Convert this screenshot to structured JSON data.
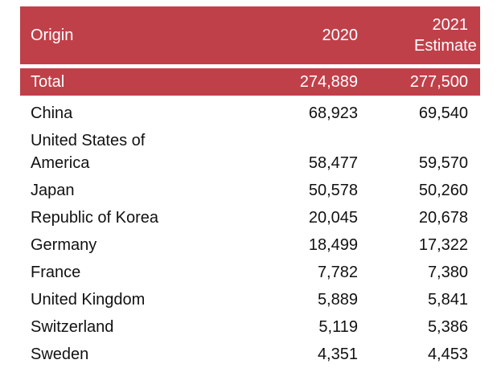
{
  "table": {
    "header": [
      "Origin",
      "2020",
      "2021 Estimate"
    ],
    "total": [
      "Total",
      "274,889",
      "277,500"
    ],
    "rows": [
      [
        "China",
        "68,923",
        "69,540"
      ],
      [
        "United States of America",
        "58,477",
        "59,570"
      ],
      [
        "Japan",
        "50,578",
        "50,260"
      ],
      [
        "Republic of Korea",
        "20,045",
        "20,678"
      ],
      [
        "Germany",
        "18,499",
        "17,322"
      ],
      [
        "France",
        "7,782",
        "7,380"
      ],
      [
        "United Kingdom",
        "5,889",
        "5,841"
      ],
      [
        "Switzerland",
        "5,119",
        "5,386"
      ],
      [
        "Sweden",
        "4,351",
        "4,453"
      ]
    ]
  }
}
